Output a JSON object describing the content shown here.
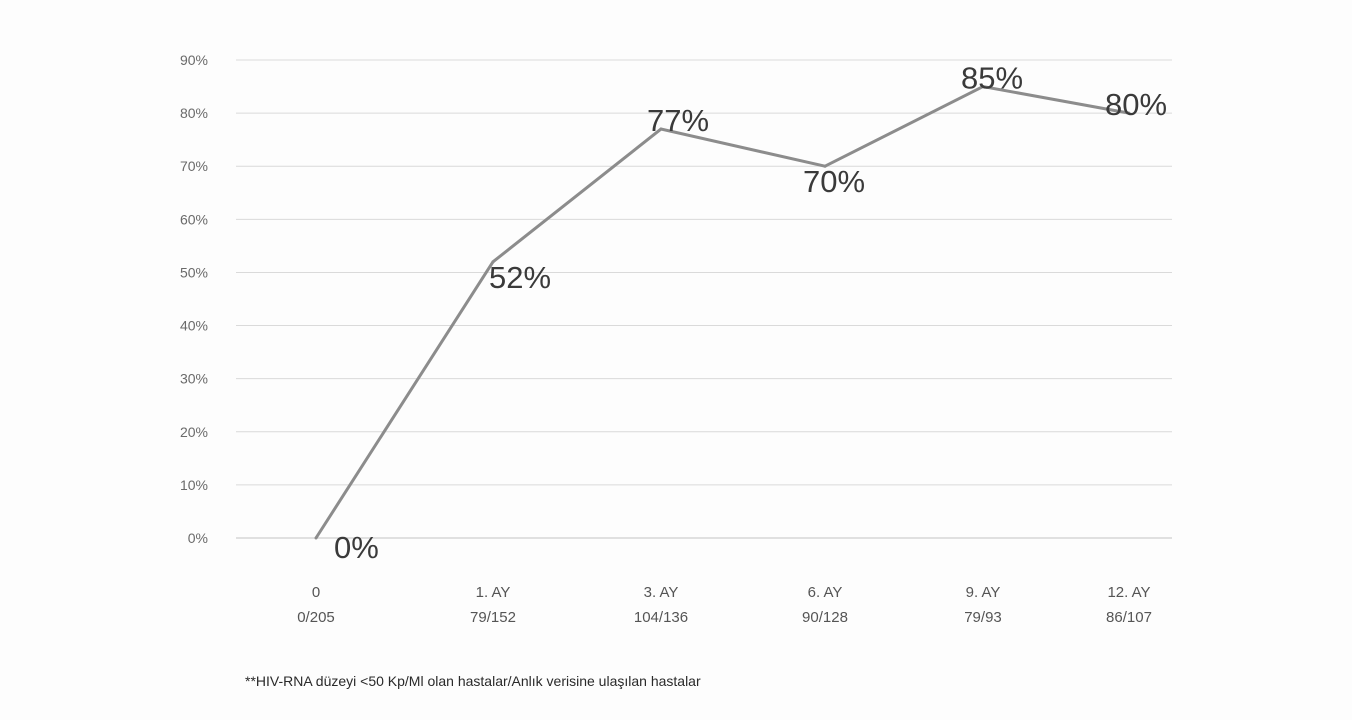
{
  "chart_data": {
    "type": "line",
    "categories": [
      "0",
      "1. AY",
      "3. AY",
      "6. AY",
      "9. AY",
      "12. AY"
    ],
    "category_sublabels": [
      "0/205",
      "79/152",
      "104/136",
      "90/128",
      "79/93",
      "86/107"
    ],
    "series": [
      {
        "values": [
          0,
          52,
          77,
          70,
          85,
          80
        ],
        "data_labels": [
          "0%",
          "52%",
          "77%",
          "70%",
          "85%",
          "80%"
        ],
        "color": "#8c8c8c"
      }
    ],
    "yticks": [
      "0%",
      "10%",
      "20%",
      "30%",
      "40%",
      "50%",
      "60%",
      "70%",
      "80%",
      "90%"
    ],
    "ylim": [
      0,
      90
    ],
    "grid": true,
    "legend": "none",
    "footnote": "**HIV-RNA düzeyi <50 Kp/Ml olan hastalar/Anlık verisine ulaşılan hastalar"
  }
}
